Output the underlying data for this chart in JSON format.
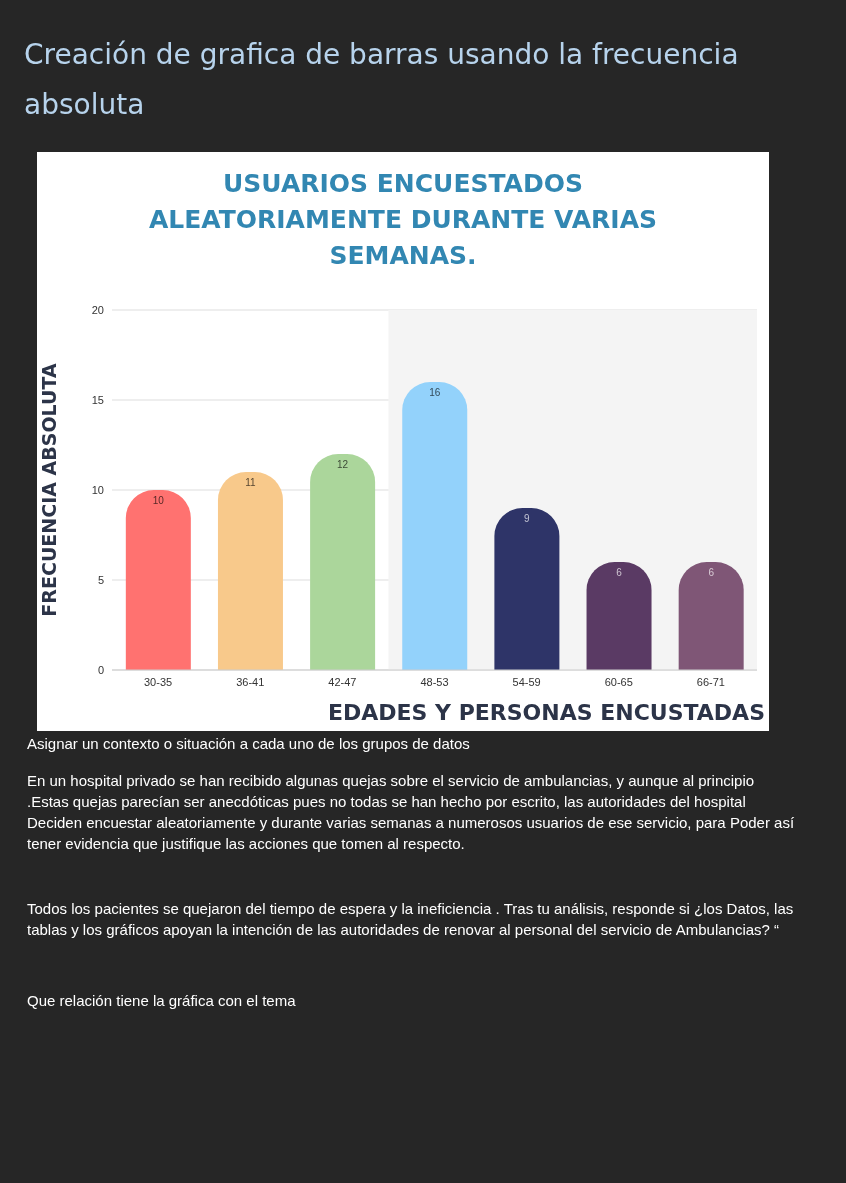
{
  "chart_data": {
    "type": "bar",
    "subtitle": "Creación de grafica de barras usando la frecuencia absoluta",
    "title": "USUARIOS ENCUESTADOS ALEATORIAMENTE DURANTE VARIAS SEMANAS.",
    "ylabel": "FRECUENCIA ABSOLUTA",
    "xlabel": "EDADES Y PERSONAS ENCUSTADAS",
    "categories": [
      "30-35",
      "36-41",
      "42-47",
      "48-53",
      "54-59",
      "60-65",
      "66-71"
    ],
    "values": [
      10,
      11,
      12,
      16,
      9,
      6,
      6
    ],
    "colors": [
      "#ff7270",
      "#f8c98b",
      "#abd69b",
      "#93d2fb",
      "#2e3468",
      "#5a3a64",
      "#7f5676"
    ],
    "ylim": [
      0,
      20
    ],
    "yticks": [
      0,
      5,
      10,
      15,
      20
    ],
    "grid": "y",
    "data_labels": true,
    "bands": [
      {
        "axis": "x",
        "from": "48-53",
        "to": "66-71",
        "color": "#f4f4f4"
      }
    ],
    "annotations": [
      "Asignar un contexto o situación a cada uno de los grupos de datos",
      "En un hospital privado se han recibido algunas quejas sobre el servicio de ambulancias, y aunque al principio .Estas quejas parecían ser anecdóticas pues no todas se han hecho por escrito, las autoridades del hospital Deciden encuestar aleatoriamente y durante varias semanas a numerosos usuarios de ese servicio, para Poder así tener evidencia que justifique las acciones que tomen al respecto.",
      "Todos los pacientes se quejaron del tiempo de espera y la ineficiencia . Tras tu análisis, responde si ¿los Datos, las tablas y los gráficos apoyan la intención de las autoridades de renovar al personal del servicio de Ambulancias? “",
      "Que relación tiene la gráfica con el tema"
    ]
  }
}
